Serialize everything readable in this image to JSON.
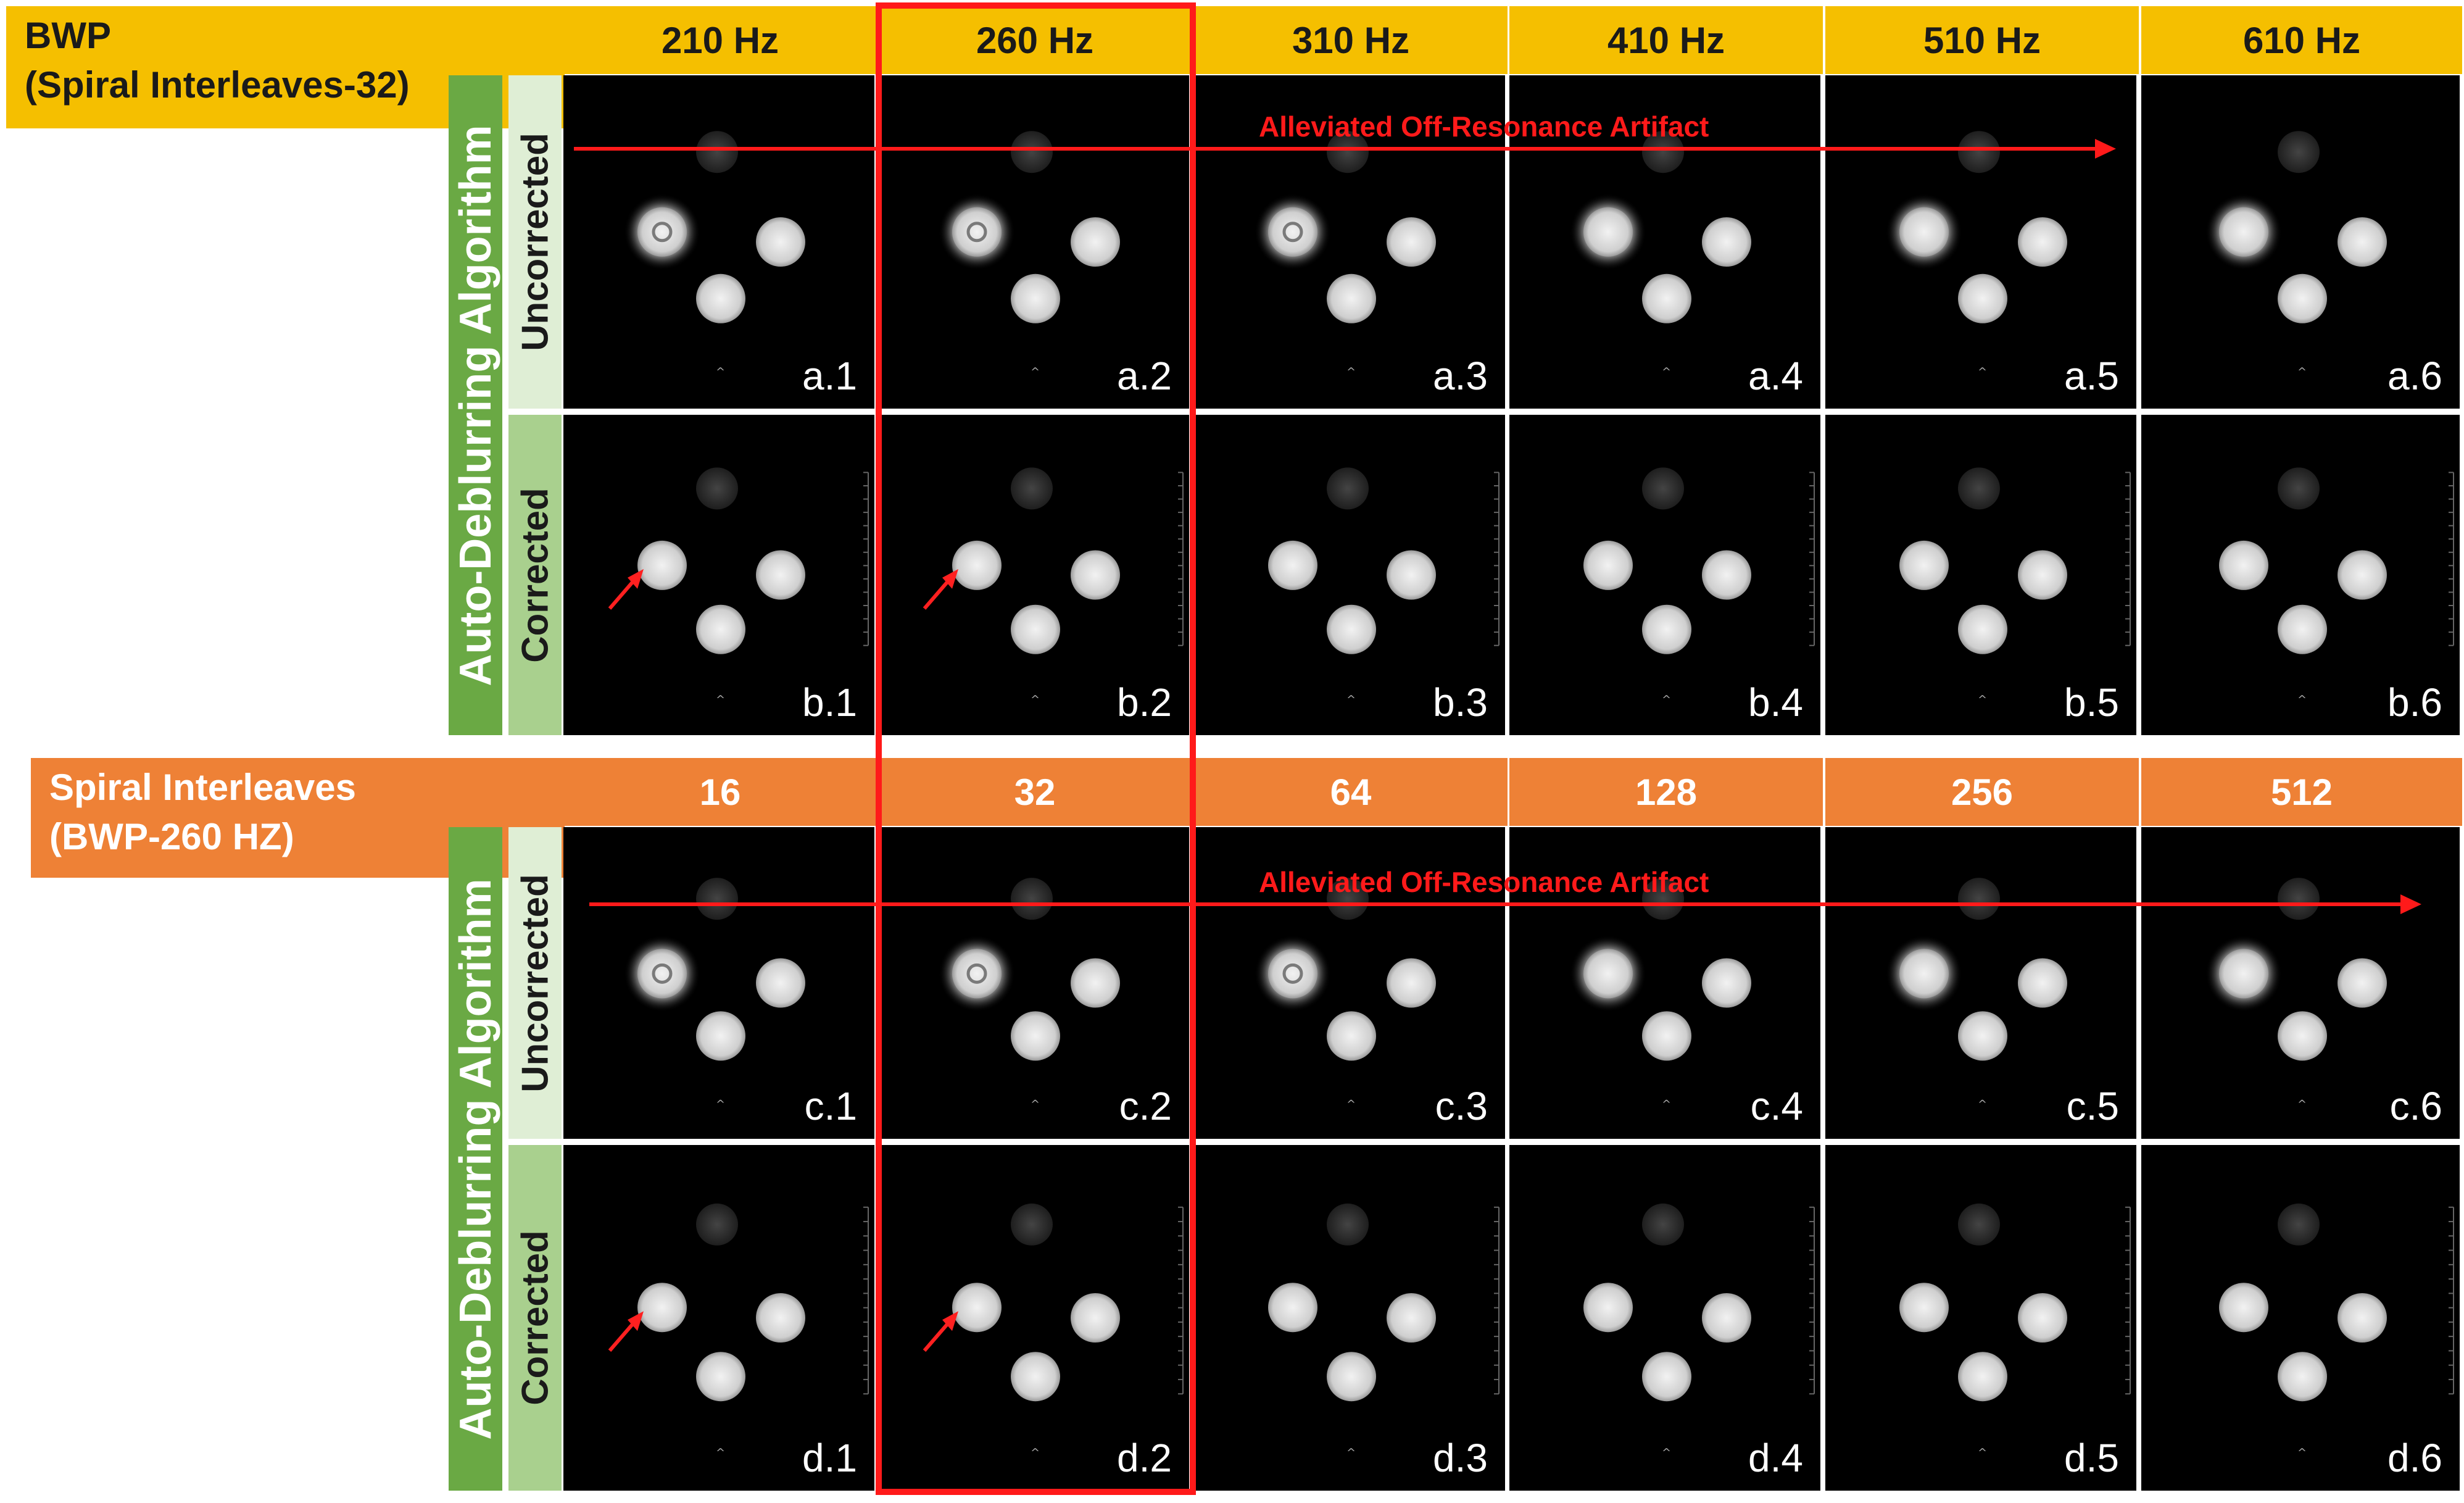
{
  "top_block": {
    "label_line1": "BWP",
    "label_line2": "(Spiral Interleaves-32)",
    "columns": [
      "210 Hz",
      "260 Hz",
      "310 Hz",
      "410 Hz",
      "510 Hz",
      "610 Hz"
    ],
    "algorithm_label": "Auto-Deblurring Algorithm",
    "row_uncorrected": "Uncorrected",
    "row_corrected": "Corrected",
    "artifact_label": "Alleviated Off-Resonance Artifact",
    "panel_labels_uncorrected": [
      "a.1",
      "a.2",
      "a.3",
      "a.4",
      "a.5",
      "a.6"
    ],
    "panel_labels_corrected": [
      "b.1",
      "b.2",
      "b.3",
      "b.4",
      "b.5",
      "b.6"
    ]
  },
  "bottom_block": {
    "label_line1": "Spiral Interleaves",
    "label_line2": "(BWP-260 HZ)",
    "columns": [
      "16",
      "32",
      "64",
      "128",
      "256",
      "512"
    ],
    "algorithm_label": "Auto-Deblurring Algorithm",
    "row_uncorrected": "Uncorrected",
    "row_corrected": "Corrected",
    "artifact_label": "Alleviated Off-Resonance Artifact",
    "panel_labels_uncorrected": [
      "c.1",
      "c.2",
      "c.3",
      "c.4",
      "c.5",
      "c.6"
    ],
    "panel_labels_corrected": [
      "d.1",
      "d.2",
      "d.3",
      "d.4",
      "d.5",
      "d.6"
    ]
  },
  "colors": {
    "top_header": "#f5bf00",
    "bottom_header": "#ee8136",
    "algorithm_bar": "#6aa944",
    "uncorrected_bar": "#dfeed5",
    "corrected_bar": "#a9d08e",
    "highlight": "#ff1a1a"
  }
}
